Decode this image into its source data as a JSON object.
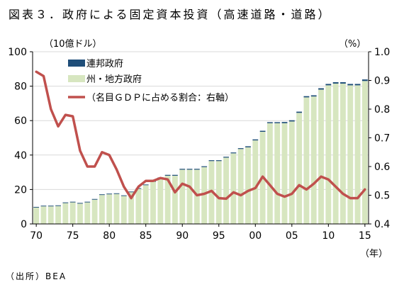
{
  "title": "図表３．政府による固定資本投資（高速道路・道路）",
  "source": "（出所）BEA",
  "chart_data": {
    "type": "bar",
    "title": "図表３．政府による固定資本投資（高速道路・道路）",
    "left_unit": "（10億ドル）",
    "right_unit": "（%）",
    "x_unit": "（年）",
    "years": [
      1970,
      1971,
      1972,
      1973,
      1974,
      1975,
      1976,
      1977,
      1978,
      1979,
      1980,
      1981,
      1982,
      1983,
      1984,
      1985,
      1986,
      1987,
      1988,
      1989,
      1990,
      1991,
      1992,
      1993,
      1994,
      1995,
      1996,
      1997,
      1998,
      1999,
      2000,
      2001,
      2002,
      2003,
      2004,
      2005,
      2006,
      2007,
      2008,
      2009,
      2010,
      2011,
      2012,
      2013,
      2014,
      2015
    ],
    "x_tick_values": [
      1970,
      1975,
      1980,
      1985,
      1990,
      1995,
      2000,
      2005,
      2010,
      2015
    ],
    "x_tick_labels": [
      "70",
      "75",
      "80",
      "85",
      "90",
      "95",
      "00",
      "05",
      "10",
      "15"
    ],
    "ylim_left": [
      0,
      100
    ],
    "y_ticks_left": [
      0,
      20,
      40,
      60,
      80,
      100
    ],
    "ylim_right": [
      0.4,
      1.0
    ],
    "y_ticks_right": [
      "0.4",
      "0.5",
      "0.6",
      "0.7",
      "0.8",
      "0.9",
      "1.0"
    ],
    "legend_position": "top-left",
    "series": [
      {
        "name": "連邦政府",
        "type": "stacked-bar",
        "color": "#1f4e79",
        "values": [
          0.4,
          0.4,
          0.4,
          0.4,
          0.4,
          0.4,
          0.4,
          0.4,
          0.4,
          0.4,
          0.4,
          0.4,
          0.4,
          0.4,
          0.4,
          0.4,
          0.4,
          0.5,
          0.5,
          0.5,
          0.5,
          0.5,
          0.5,
          0.5,
          0.5,
          0.5,
          0.5,
          0.5,
          0.5,
          0.6,
          0.6,
          0.6,
          0.6,
          0.6,
          0.7,
          0.7,
          0.7,
          0.7,
          0.7,
          0.8,
          0.8,
          0.8,
          0.8,
          0.8,
          0.8,
          0.9
        ]
      },
      {
        "name": "州・地方政府",
        "type": "stacked-bar",
        "color": "#d7e6c0",
        "values": [
          9.5,
          10.2,
          10.2,
          10.4,
          12.1,
          12.5,
          11.8,
          12.5,
          14.1,
          16.8,
          17.2,
          17.4,
          16.2,
          18.4,
          20.4,
          22.5,
          24.5,
          26.5,
          28.0,
          28.0,
          31.5,
          31.5,
          31.5,
          33.0,
          36.5,
          36.5,
          38.5,
          41.0,
          43.5,
          44.5,
          48.5,
          53.5,
          58.5,
          58.5,
          58.5,
          59.5,
          64.5,
          73.5,
          74.0,
          78.0,
          80.5,
          81.5,
          81.5,
          80.5,
          80.5,
          83.0
        ]
      },
      {
        "name": "（名目ＧＤＰに占める割合：右軸）",
        "type": "line",
        "axis": "right",
        "color": "#c0504d",
        "values": [
          0.93,
          0.915,
          0.8,
          0.74,
          0.78,
          0.775,
          0.655,
          0.6,
          0.6,
          0.65,
          0.64,
          0.59,
          0.53,
          0.49,
          0.53,
          0.55,
          0.55,
          0.56,
          0.555,
          0.51,
          0.54,
          0.53,
          0.5,
          0.505,
          0.515,
          0.49,
          0.488,
          0.51,
          0.5,
          0.515,
          0.525,
          0.565,
          0.535,
          0.505,
          0.495,
          0.505,
          0.535,
          0.52,
          0.54,
          0.565,
          0.555,
          0.53,
          0.505,
          0.49,
          0.49,
          0.52
        ]
      }
    ]
  }
}
